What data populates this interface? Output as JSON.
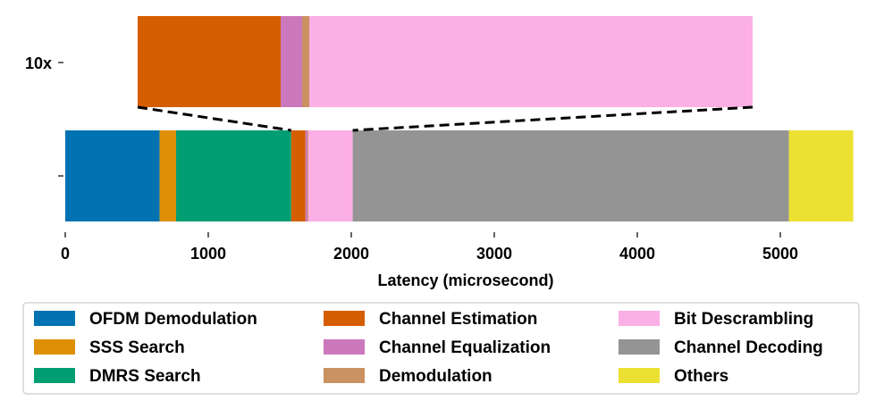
{
  "chart_data": {
    "type": "bar",
    "orientation": "horizontal",
    "stacked": true,
    "xlabel": "Latency (microsecond)",
    "xlim": [
      0,
      5500
    ],
    "xticks": [
      0,
      1000,
      2000,
      3000,
      4000,
      5000
    ],
    "legend_position": "bottom",
    "segments": [
      {
        "name": "OFDM Demodulation",
        "value": 660,
        "color": "#0173b2"
      },
      {
        "name": "SSS Search",
        "value": 115,
        "color": "#de8f05"
      },
      {
        "name": "DMRS Search",
        "value": 805,
        "color": "#029e73"
      },
      {
        "name": "Channel Estimation",
        "value": 100,
        "color": "#d55e00"
      },
      {
        "name": "Channel Equalization",
        "value": 15,
        "color": "#cc78bc"
      },
      {
        "name": "Demodulation",
        "value": 5,
        "color": "#ca9161"
      },
      {
        "name": "Bit Descrambling",
        "value": 310,
        "color": "#fbafe4"
      },
      {
        "name": "Channel Decoding",
        "value": 3050,
        "color": "#949494"
      },
      {
        "name": "Others",
        "value": 450,
        "color": "#ece133"
      }
    ],
    "zoom": {
      "label": "10x",
      "factor": 10,
      "segment_range": [
        3,
        6
      ]
    }
  }
}
